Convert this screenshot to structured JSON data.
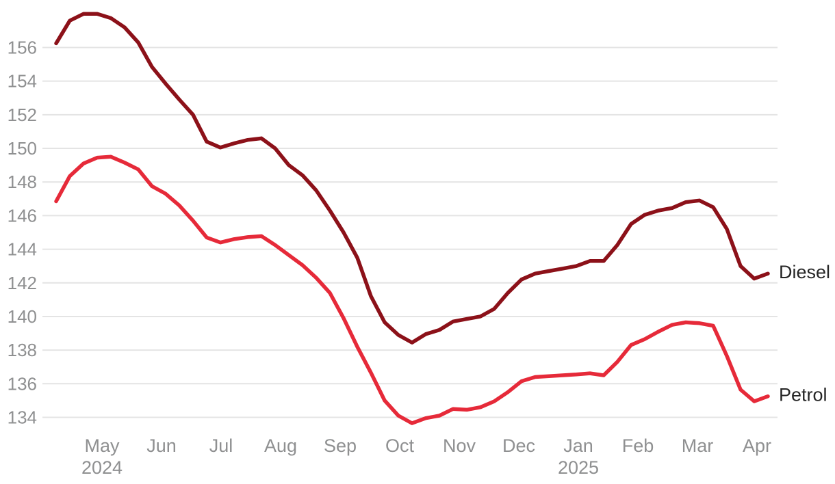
{
  "chart_data": {
    "type": "line",
    "title": "",
    "grid": "horizontal",
    "legend_position": "end-of-line-labels",
    "y_ticks": [
      134,
      136,
      138,
      140,
      142,
      144,
      146,
      148,
      150,
      152,
      154,
      156
    ],
    "ylim": [
      134,
      156
    ],
    "x_tick_labels": [
      "May",
      "Jun",
      "Jul",
      "Aug",
      "Sep",
      "Oct",
      "Nov",
      "Dec",
      "Jan",
      "Feb",
      "Mar",
      "Apr"
    ],
    "x_year_labels": [
      {
        "month_index": 0,
        "label": "2024"
      },
      {
        "month_index": 8,
        "label": "2025"
      }
    ],
    "colors": {
      "gridline": "#e4e4e4",
      "axis_text": "#8f9091",
      "series_label_text": "#262626"
    },
    "series": [
      {
        "name": "Diesel",
        "color": "#8c1119",
        "values": [
          156.25,
          157.6,
          158.0,
          158.0,
          157.75,
          157.2,
          156.3,
          154.85,
          153.85,
          152.9,
          152.0,
          150.4,
          150.05,
          150.3,
          150.5,
          150.6,
          150.0,
          149.0,
          148.4,
          147.5,
          146.3,
          145.0,
          143.5,
          141.2,
          139.65,
          138.9,
          138.45,
          138.95,
          139.2,
          139.7,
          139.85,
          140.0,
          140.45,
          141.4,
          142.2,
          142.55,
          142.7,
          142.85,
          143.0,
          143.3,
          143.3,
          144.25,
          145.5,
          146.05,
          146.3,
          146.45,
          146.8,
          146.9,
          146.5,
          145.2,
          143.0,
          142.25,
          142.55
        ]
      },
      {
        "name": "Petrol",
        "color": "#e62a39",
        "values": [
          146.85,
          148.35,
          149.1,
          149.45,
          149.5,
          149.15,
          148.75,
          147.75,
          147.3,
          146.6,
          145.7,
          144.7,
          144.4,
          144.6,
          144.72,
          144.78,
          144.25,
          143.65,
          143.05,
          142.3,
          141.4,
          139.9,
          138.2,
          136.65,
          135.0,
          134.1,
          133.65,
          133.95,
          134.1,
          134.5,
          134.45,
          134.6,
          134.95,
          135.5,
          136.15,
          136.4,
          136.45,
          136.5,
          136.55,
          136.62,
          136.5,
          137.3,
          138.3,
          138.65,
          139.1,
          139.5,
          139.65,
          139.6,
          139.45,
          137.65,
          135.65,
          134.95,
          135.25
        ]
      }
    ]
  }
}
